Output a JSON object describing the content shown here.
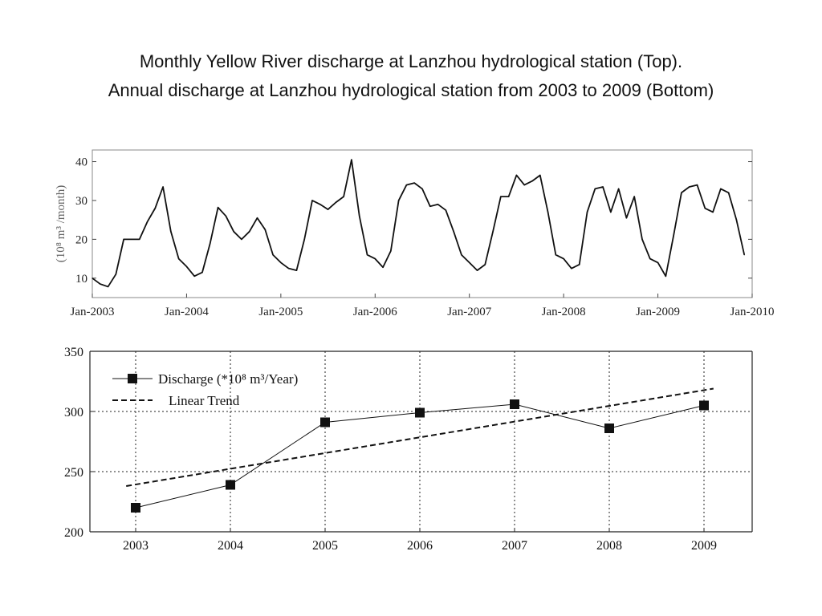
{
  "slide": {
    "title_line1": "Monthly Yellow River discharge at Lanzhou hydrological station (Top).",
    "title_line2": "Annual discharge at Lanzhou hydrological station from 2003 to 2009 (Bottom)"
  },
  "chart_data": [
    {
      "type": "line",
      "ylabel": "(10⁸ m³ /month)",
      "x_ticks": [
        "Jan-2003",
        "Jan-2004",
        "Jan-2005",
        "Jan-2006",
        "Jan-2007",
        "Jan-2008",
        "Jan-2009",
        "Jan-2010"
      ],
      "y_ticks": [
        "10",
        "20",
        "30",
        "40"
      ],
      "ylim": [
        5,
        43
      ],
      "x_start": "Jan-2003",
      "grid": false,
      "series": [
        {
          "color": "#111111",
          "values": [
            10.0,
            8.5,
            7.8,
            11.0,
            20.0,
            20.0,
            20.0,
            24.5,
            28.0,
            33.5,
            22.0,
            15.0,
            13.0,
            10.5,
            11.5,
            19.0,
            28.2,
            26.0,
            22.0,
            20.0,
            22.0,
            25.5,
            22.5,
            16.0,
            14.0,
            12.5,
            12.0,
            20.0,
            30.0,
            29.0,
            27.7,
            29.5,
            31.0,
            40.5,
            26.0,
            16.0,
            15.0,
            12.8,
            17.0,
            30.0,
            34.0,
            34.5,
            33.0,
            28.5,
            29.0,
            27.5,
            22.0,
            16.0,
            14.0,
            12.0,
            13.5,
            22.0,
            31.0,
            31.0,
            36.5,
            34.0,
            35.0,
            36.5,
            27.0,
            16.0,
            15.0,
            12.5,
            13.5,
            27.0,
            33.0,
            33.5,
            27.0,
            33.0,
            25.5,
            31.0,
            20.0,
            15.0,
            14.0,
            10.5,
            21.0,
            32.0,
            33.5,
            34.0,
            28.0,
            27.0,
            33.0,
            32.0,
            25.0,
            16.0
          ]
        }
      ]
    },
    {
      "type": "line",
      "categories": [
        "2003",
        "2004",
        "2005",
        "2006",
        "2007",
        "2008",
        "2009"
      ],
      "y_ticks": [
        "200",
        "250",
        "300",
        "350"
      ],
      "ylim": [
        200,
        350
      ],
      "grid": true,
      "legend": "top-left",
      "series": [
        {
          "name": "Discharge (*10⁸ m³/Year)",
          "marker": "square",
          "color": "#111111",
          "values": [
            220,
            239,
            291,
            299,
            306,
            286,
            305
          ]
        },
        {
          "name": "Linear Trend",
          "style": "dashed",
          "color": "#111111",
          "x": [
            2002.9,
            2009.1
          ],
          "values": [
            238,
            319
          ]
        }
      ]
    }
  ]
}
